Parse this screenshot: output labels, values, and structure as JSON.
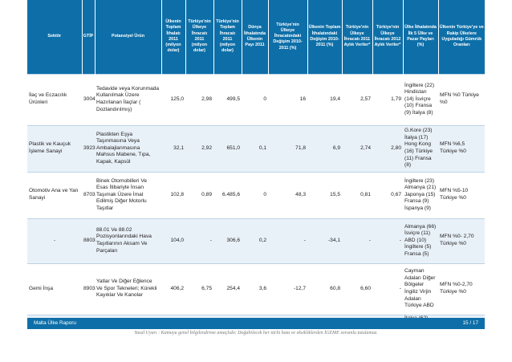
{
  "headers": [
    "Sektör",
    "GTİP",
    "Potansiyel Ürün",
    "Ülkenin Toplam İthalatı 2011 (milyon dolar)",
    "Türkiye'nin Ülkeye İhracatı 2011 (milyon dolar)",
    "Türkiye'nin Toplam İhracatı 2011 (milyon dolar)",
    "Dünya İthalatında Ülkenin Payı 2011",
    "Türkiye'nin Ülkeye İhracatındaki Değişim 2010-2011 (%)",
    "Ülkenin Toplam İthalatındaki Değişim 2010-2011 (%)",
    "Türkiye'nin Ülkeye İhracatı 2011 Aylık Veriler*",
    "Türkiye'nin Ülkeye İhracatı 2012 Aylık Veriler*",
    "Ülke İthalatında İlk 5 Ülke ve Pazar Payları (%)",
    "Ülkenin Türkiye'ye ve Rakip Ülkelere Uyguladığı Gümrük Oranları"
  ],
  "rows": [
    {
      "sector": "İlaç ve Eczacılık Ürünleri",
      "gtip": "3004",
      "product": "Tedavide veya Korunmada Kullanılmak Üzere Hazırlanan İlaçlar ( Dozlandırılmış)",
      "c1": "125,0",
      "c2": "2,98",
      "c3": "499,5",
      "c4": "0",
      "c5": "16",
      "c6": "19,4",
      "c7": "2,57",
      "c8": "1,79",
      "top5": "İngiltere (22) Hindistan (14) İsviçre (10) Fransa (9) İtalya (8)",
      "tariff": "MFN %0 Türkiye %0"
    },
    {
      "sector": "Plastik ve Kauçuk İşleme Sanayi",
      "gtip": "3923",
      "product": "Plastikten Eşya Taşınmasına Veya Ambalajlanmasına Mahsus Mabene, Tıpa, Kapak, Kapsül",
      "c1": "32,1",
      "c2": "2,92",
      "c3": "651,0",
      "c4": "0,1",
      "c5": "71,8",
      "c6": "6,9",
      "c7": "2,74",
      "c8": "2,80",
      "top5": "G.Kore (23) İtalya (17) Hong Kong (16) Türkiye (11) Fransa (8)",
      "tariff": "MFN %6,5 Türkiye %0"
    },
    {
      "sector": "Otomotiv Ana ve Yan Sanayi",
      "gtip": "8703",
      "product": "Binek Otomobilleri Ve Esas İtibariyle İnsan Taşımak Üzere İmal Edilmiş Diğer Motorlu Taşıtlar",
      "c1": "102,8",
      "c2": "0,89",
      "c3": "6.485,6",
      "c4": "0",
      "c5": "48,3",
      "c6": "15,5",
      "c7": "0,81",
      "c8": "0,67",
      "top5": "İngiltere (23) Almanya (21) Japonya (15) Fransa (9) İspanya (9)",
      "tariff": "MFN %5-10 Türkiye %0"
    },
    {
      "sector": "-",
      "gtip": "8803",
      "product": "88.01 Ve 88.02 Pozisyonlarındaki Hava Taşıtlarının Aksam Ve Parçaları",
      "c1": "104,0",
      "c2": "-",
      "c3": "306,6",
      "c4": "0,2",
      "c5": "-",
      "c6": "-34,1",
      "c7": "-",
      "c8": "-",
      "top5": "Almanya (66) İsviçre (11) ABD (10) İngiltere (5) Fransa (5)",
      "tariff": "MFN %0- 2,70 Türkiye %0"
    },
    {
      "sector": "Gemi İnşa",
      "gtip": "8903",
      "product": "Yatlar Ve Diğer Eğlence Ve Spor Tekneleri; Kürekli Kayıklar Ve Kanolar",
      "c1": "406,2",
      "c2": "6,75",
      "c3": "254,4",
      "c4": "3,6",
      "c5": "-12,7",
      "c6": "60,8",
      "c7": "6,60",
      "c8": "-",
      "top5": "Cayman Adaları Diğer Bölgeler İngiliz Virjin Adaları Türkiye ABD",
      "tariff": "MFN %0-2,70 Türkiye %0"
    }
  ],
  "partial_row": {
    "top5": "İtalya (62)"
  },
  "footer": {
    "left": "Malta Ülke Raporu",
    "right": "15 / 17"
  },
  "disclaimer": "Yasal Uyarı : Kamuyu genel bilgilendirme amaçlıdır. Doğabilecek her türlü hata ve eksikliklerden İGEME sorumlu tutulamaz."
}
